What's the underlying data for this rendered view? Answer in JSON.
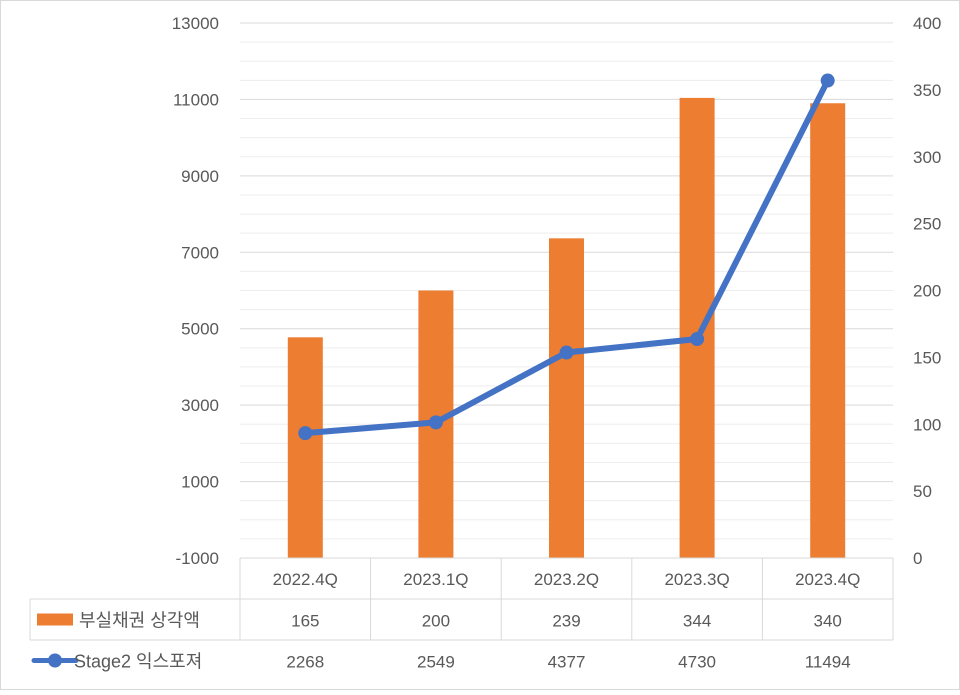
{
  "chart_data": {
    "type": "bar",
    "categories": [
      "2022.4Q",
      "2023.1Q",
      "2023.2Q",
      "2023.3Q",
      "2023.4Q"
    ],
    "series": [
      {
        "name": "부실채권 상각액",
        "kind": "bar",
        "axis": "right",
        "values": [
          165,
          200,
          239,
          344,
          340
        ],
        "color": "#ED7D31"
      },
      {
        "name": "Stage2 익스포져",
        "kind": "line",
        "axis": "left",
        "values": [
          2268,
          2549,
          4377,
          4730,
          11494
        ],
        "color": "#4472C4"
      }
    ],
    "y_left": {
      "min": -1000,
      "max": 13000,
      "ticks": [
        "13000",
        "11000",
        "9000",
        "7000",
        "5000",
        "3000",
        "1000",
        "-1000"
      ]
    },
    "y_right": {
      "min": 0,
      "max": 400,
      "ticks": [
        "400",
        "350",
        "300",
        "250",
        "200",
        "150",
        "100",
        "50",
        "0"
      ]
    },
    "grid": true,
    "data_table": true,
    "border_color": "#D9D9D9"
  }
}
